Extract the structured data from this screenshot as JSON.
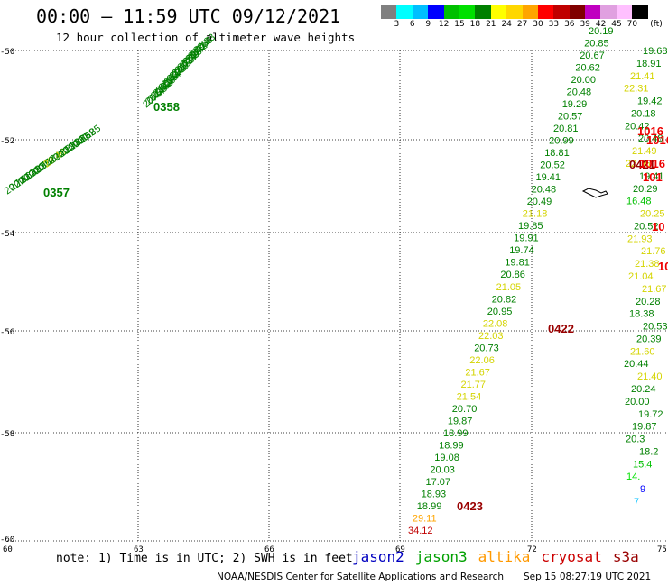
{
  "header": {
    "title": "00:00 – 11:59 UTC 09/12/2021",
    "subtitle": "12 hour collection of altimeter wave heights"
  },
  "colorbar": {
    "unit": "(ft)",
    "colors": [
      "#808080",
      "#00ffff",
      "#00bfff",
      "#0000ff",
      "#00c000",
      "#00e000",
      "#008000",
      "#ffff00",
      "#ffd700",
      "#ffa500",
      "#ff0000",
      "#c00000",
      "#800000",
      "#c000c0",
      "#e0a0e0",
      "#ffc0ff",
      "#000000"
    ],
    "labels": [
      "3",
      "6",
      "9",
      "12",
      "15",
      "18",
      "21",
      "24",
      "27",
      "30",
      "33",
      "36",
      "39",
      "42",
      "45",
      "70"
    ]
  },
  "axes": {
    "lon_ticks": [
      "60",
      "63",
      "66",
      "69",
      "72",
      "75"
    ],
    "lat_ticks": [
      "-50",
      "-52",
      "-54",
      "-56",
      "-58",
      "-60"
    ]
  },
  "track_labels": {
    "t1": "0358",
    "t2": "0357",
    "t3": "0423",
    "t4": "0422",
    "t5": "0421",
    "t6": "1016",
    "t7": "1016",
    "t8": "1016",
    "t9": "101",
    "t10": "10",
    "t11": "10"
  },
  "points": {
    "c": [
      {
        "v": "34.12",
        "color": "#c00000"
      },
      {
        "v": "29.11",
        "color": "#ffa500"
      },
      {
        "v": "18.99",
        "color": "#008000"
      },
      {
        "v": "18.93",
        "color": "#008000"
      },
      {
        "v": "17.07",
        "color": "#008000"
      },
      {
        "v": "20.03",
        "color": "#008000"
      },
      {
        "v": "19.08",
        "color": "#008000"
      },
      {
        "v": "18.99",
        "color": "#008000"
      },
      {
        "v": "18.99",
        "color": "#008000"
      },
      {
        "v": "19.87",
        "color": "#008000"
      },
      {
        "v": "20.70",
        "color": "#008000"
      },
      {
        "v": "21.54",
        "color": "#d4d400"
      },
      {
        "v": "21.77",
        "color": "#d4d400"
      },
      {
        "v": "21.67",
        "color": "#d4d400"
      },
      {
        "v": "22.06",
        "color": "#d4d400"
      },
      {
        "v": "20.73",
        "color": "#008000"
      },
      {
        "v": "22.03",
        "color": "#d4d400"
      },
      {
        "v": "22.08",
        "color": "#d4d400"
      },
      {
        "v": "20.95",
        "color": "#008000"
      },
      {
        "v": "20.82",
        "color": "#008000"
      },
      {
        "v": "21.05",
        "color": "#d4d400"
      },
      {
        "v": "20.86",
        "color": "#008000"
      },
      {
        "v": "19.81",
        "color": "#008000"
      },
      {
        "v": "19.74",
        "color": "#008000"
      },
      {
        "v": "19.91",
        "color": "#008000"
      },
      {
        "v": "19.85",
        "color": "#008000"
      },
      {
        "v": "21.18",
        "color": "#d4d400"
      },
      {
        "v": "20.49",
        "color": "#008000"
      },
      {
        "v": "20.48",
        "color": "#008000"
      },
      {
        "v": "19.41",
        "color": "#008000"
      },
      {
        "v": "20.52",
        "color": "#008000"
      },
      {
        "v": "18.81",
        "color": "#008000"
      },
      {
        "v": "20.99",
        "color": "#008000"
      },
      {
        "v": "20.81",
        "color": "#008000"
      },
      {
        "v": "20.57",
        "color": "#008000"
      },
      {
        "v": "19.29",
        "color": "#008000"
      },
      {
        "v": "20.48",
        "color": "#008000"
      },
      {
        "v": "20.00",
        "color": "#008000"
      },
      {
        "v": "20.62",
        "color": "#008000"
      },
      {
        "v": "20.67",
        "color": "#008000"
      },
      {
        "v": "20.85",
        "color": "#008000"
      },
      {
        "v": "20.19",
        "color": "#008000"
      }
    ],
    "d": [
      {
        "v": "19.68",
        "color": "#008000"
      },
      {
        "v": "18.91",
        "color": "#008000"
      },
      {
        "v": "21.41",
        "color": "#d4d400"
      },
      {
        "v": "22.31",
        "color": "#d4d400"
      },
      {
        "v": "19.42",
        "color": "#008000"
      },
      {
        "v": "20.18",
        "color": "#008000"
      },
      {
        "v": "20.42",
        "color": "#008000"
      },
      {
        "v": "20.48",
        "color": "#008000"
      },
      {
        "v": "21.49",
        "color": "#d4d400"
      },
      {
        "v": "22.05",
        "color": "#d4d400"
      },
      {
        "v": "19.41",
        "color": "#008000"
      },
      {
        "v": "20.29",
        "color": "#008000"
      },
      {
        "v": "16.48",
        "color": "#00c000"
      },
      {
        "v": "20.25",
        "color": "#d4d400"
      },
      {
        "v": "20.52",
        "color": "#008000"
      },
      {
        "v": "21.93",
        "color": "#d4d400"
      },
      {
        "v": "21.76",
        "color": "#d4d400"
      },
      {
        "v": "21.38",
        "color": "#d4d400"
      },
      {
        "v": "21.04",
        "color": "#d4d400"
      },
      {
        "v": "21.67",
        "color": "#d4d400"
      },
      {
        "v": "20.28",
        "color": "#008000"
      },
      {
        "v": "18.38",
        "color": "#008000"
      },
      {
        "v": "20.53",
        "color": "#008000"
      },
      {
        "v": "20.39",
        "color": "#008000"
      },
      {
        "v": "21.60",
        "color": "#d4d400"
      },
      {
        "v": "20.44",
        "color": "#008000"
      },
      {
        "v": "21.40",
        "color": "#d4d400"
      },
      {
        "v": "20.24",
        "color": "#008000"
      },
      {
        "v": "20.00",
        "color": "#008000"
      },
      {
        "v": "19.72",
        "color": "#008000"
      },
      {
        "v": "19.87",
        "color": "#008000"
      },
      {
        "v": "20.3",
        "color": "#008000"
      },
      {
        "v": "18.2",
        "color": "#008000"
      },
      {
        "v": "15.4",
        "color": "#00c000"
      },
      {
        "v": "14.",
        "color": "#00e000"
      },
      {
        "v": "9",
        "color": "#0000ff"
      },
      {
        "v": "7",
        "color": "#00bfff"
      }
    ],
    "a": [
      {
        "v": "20.44",
        "color": "#008000"
      },
      {
        "v": "20.58",
        "color": "#008000"
      },
      {
        "v": "20.76",
        "color": "#008000"
      },
      {
        "v": "20.92",
        "color": "#008000"
      },
      {
        "v": "21.08",
        "color": "#008000"
      },
      {
        "v": "20.35",
        "color": "#008000"
      },
      {
        "v": "20.44",
        "color": "#008000"
      },
      {
        "v": "20.67",
        "color": "#008000"
      },
      {
        "v": "20.81",
        "color": "#008000"
      },
      {
        "v": "20.96",
        "color": "#008000"
      },
      {
        "v": "20.55",
        "color": "#008000"
      },
      {
        "v": "20.71",
        "color": "#008000"
      },
      {
        "v": "21.13",
        "color": "#008000"
      },
      {
        "v": "20.60",
        "color": "#008000"
      },
      {
        "v": "20.88",
        "color": "#008000"
      },
      {
        "v": "20.47",
        "color": "#008000"
      },
      {
        "v": "20.72",
        "color": "#008000"
      },
      {
        "v": "20.94",
        "color": "#008000"
      },
      {
        "v": "20.66",
        "color": "#008000"
      },
      {
        "v": "20.83",
        "color": "#008000"
      }
    ],
    "b": [
      {
        "v": "20.74",
        "color": "#008000"
      },
      {
        "v": "20.51",
        "color": "#008000"
      },
      {
        "v": "20.63",
        "color": "#008000"
      },
      {
        "v": "20.49",
        "color": "#008000"
      },
      {
        "v": "20.88",
        "color": "#008000"
      },
      {
        "v": "20.70",
        "color": "#008000"
      },
      {
        "v": "20.57",
        "color": "#008000"
      },
      {
        "v": "20.64",
        "color": "#008000"
      },
      {
        "v": "22.40",
        "color": "#d4d400"
      },
      {
        "v": "20.81",
        "color": "#008000"
      },
      {
        "v": "20.59",
        "color": "#008000"
      },
      {
        "v": "20.73",
        "color": "#008000"
      },
      {
        "v": "20.66",
        "color": "#008000"
      },
      {
        "v": "20.78",
        "color": "#008000"
      },
      {
        "v": "20.62",
        "color": "#008000"
      },
      {
        "v": "20.85",
        "color": "#008000"
      }
    ]
  },
  "footer": {
    "note": "note: 1) Time is in UTC; 2) SWH is in feet",
    "credit": "NOAA/NESDIS Center for Satellite Applications and Research",
    "timestamp": "Sep 15 08:27:19 UTC 2021"
  },
  "legend": [
    {
      "label": "jason2",
      "color": "#0000c0"
    },
    {
      "label": "jason3",
      "color": "#00a000"
    },
    {
      "label": "altika",
      "color": "#ff9900"
    },
    {
      "label": "cryosat",
      "color": "#cc0000"
    },
    {
      "label": "s3a",
      "color": "#990000"
    }
  ]
}
